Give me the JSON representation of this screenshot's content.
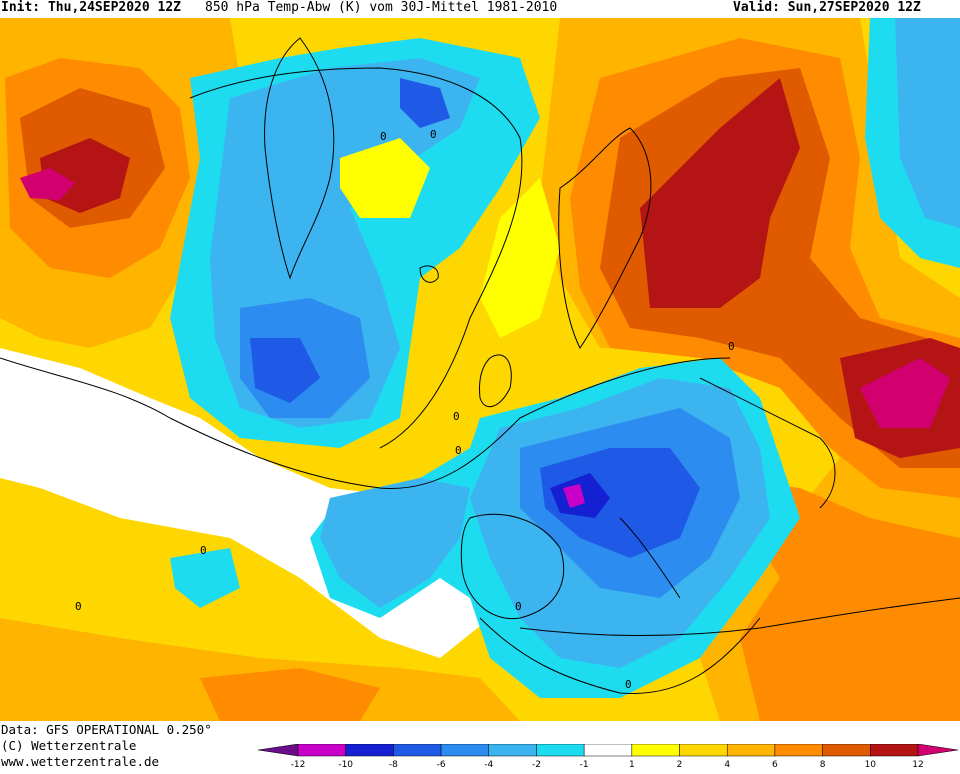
{
  "header": {
    "init": "Init: Thu,24SEP2020 12Z",
    "parameter": "850 hPa Temp-Abw (K) vom 30J-Mittel 1981-2010",
    "valid": "Valid: Sun,27SEP2020 12Z"
  },
  "footer": {
    "data_source": "Data: GFS OPERATIONAL 0.250°",
    "copyright": "(C) Wetterzentrale",
    "website": "www.wetterzentrale.de"
  },
  "colorbar": {
    "colors": [
      "#6a0d8a",
      "#c800c8",
      "#1420d2",
      "#1e5ae6",
      "#2d8cf0",
      "#3cb4f0",
      "#1edcf0",
      "#ffffff",
      "#ffff00",
      "#ffd700",
      "#ffb400",
      "#ff8c00",
      "#e05a00",
      "#b41414",
      "#d2006e"
    ],
    "tick_labels": [
      "-12",
      "-10",
      "-8",
      "-6",
      "-4",
      "-2",
      "-1",
      "1",
      "2",
      "4",
      "6",
      "8",
      "10",
      "12"
    ]
  },
  "map_labels": {
    "contour_zero": "0"
  }
}
